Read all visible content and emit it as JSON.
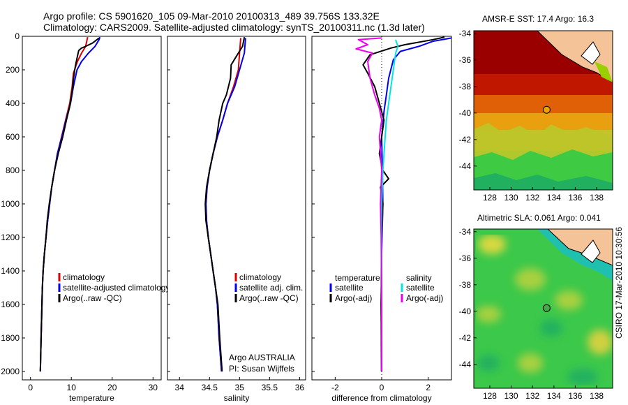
{
  "title_line1": "Argo profile: CS 5901620_105 09-Mar-2010 20100313_489 39.756S 133.32E",
  "title_line2": "Climatology: CARS2009. Satellite-adjusted climatology: synTS_20100311.nc (1.3d later)",
  "credit": "CSIRO 17-Mar-2010 10:30:56",
  "colors": {
    "climatology": "#dd0000",
    "satellite": "#0000ee",
    "argo": "#000000",
    "satellite_salinity": "#00e5e5",
    "argo_salinity_diff": "#ee00ee"
  },
  "chart_data": [
    {
      "type": "line",
      "id": "temperature",
      "xlabel": "temperature",
      "ylabel": "",
      "xlim": [
        -2,
        32
      ],
      "ylim": [
        2050,
        0
      ],
      "xticks": [
        "0",
        "10",
        "20",
        "30"
      ],
      "xtick_values": [
        0,
        10,
        20,
        30
      ],
      "yticks": [
        "0",
        "200",
        "400",
        "600",
        "800",
        "1000",
        "1200",
        "1400",
        "1600",
        "1800",
        "2000"
      ],
      "ytick_values": [
        0,
        200,
        400,
        600,
        800,
        1000,
        1200,
        1400,
        1600,
        1800,
        2000
      ],
      "legend": [
        "climatology",
        "satellite-adjusted climatology",
        "Argo(..raw -QC)"
      ],
      "series": [
        {
          "name": "climatology",
          "color": "#dd0000",
          "points": [
            [
              14,
              5
            ],
            [
              13.5,
              60
            ],
            [
              12.5,
              100
            ],
            [
              11.5,
              150
            ],
            [
              10.5,
              220
            ],
            [
              10.2,
              300
            ],
            [
              9.6,
              400
            ],
            [
              8.6,
              500
            ],
            [
              7.6,
              600
            ],
            [
              6.6,
              700
            ],
            [
              5.9,
              800
            ],
            [
              5.2,
              900
            ],
            [
              4.7,
              1000
            ],
            [
              4.2,
              1100
            ],
            [
              3.8,
              1200
            ],
            [
              3.4,
              1300
            ],
            [
              3.1,
              1400
            ],
            [
              2.9,
              1500
            ],
            [
              2.8,
              1600
            ],
            [
              2.6,
              1800
            ],
            [
              2.4,
              2000
            ]
          ]
        },
        {
          "name": "satellite-adjusted climatology",
          "color": "#0000ee",
          "points": [
            [
              17,
              5
            ],
            [
              16.8,
              20
            ],
            [
              15.8,
              60
            ],
            [
              14.2,
              100
            ],
            [
              12.5,
              150
            ],
            [
              11.4,
              200
            ],
            [
              10.5,
              300
            ],
            [
              9.8,
              400
            ],
            [
              8.7,
              500
            ],
            [
              7.7,
              600
            ],
            [
              6.6,
              700
            ],
            [
              5.9,
              800
            ],
            [
              5.2,
              900
            ],
            [
              4.7,
              1000
            ],
            [
              4.2,
              1100
            ],
            [
              3.8,
              1200
            ],
            [
              3.4,
              1300
            ],
            [
              3.1,
              1400
            ],
            [
              2.9,
              1500
            ],
            [
              2.8,
              1600
            ],
            [
              2.6,
              1800
            ],
            [
              2.4,
              2000
            ]
          ]
        },
        {
          "name": "Argo(..raw -QC)",
          "color": "#000000",
          "points": [
            [
              16.8,
              10
            ],
            [
              15.2,
              40
            ],
            [
              13.5,
              60
            ],
            [
              12.5,
              70
            ],
            [
              11.8,
              85
            ],
            [
              11.4,
              130
            ],
            [
              11,
              175
            ],
            [
              10.6,
              240
            ],
            [
              10.2,
              330
            ],
            [
              9.6,
              420
            ],
            [
              8.8,
              500
            ],
            [
              7.9,
              600
            ],
            [
              6.8,
              700
            ],
            [
              5.9,
              800
            ],
            [
              5.2,
              900
            ],
            [
              4.6,
              1000
            ],
            [
              4.1,
              1100
            ],
            [
              3.8,
              1200
            ],
            [
              3.4,
              1300
            ],
            [
              3.1,
              1400
            ],
            [
              2.9,
              1500
            ],
            [
              2.8,
              1600
            ],
            [
              2.6,
              1800
            ],
            [
              2.4,
              2000
            ]
          ]
        }
      ]
    },
    {
      "type": "line",
      "id": "salinity",
      "xlabel": "salinity",
      "xlim": [
        33.8,
        36.1
      ],
      "ylim": [
        2050,
        0
      ],
      "xticks": [
        "34",
        "34.5",
        "35",
        "35.5",
        "36"
      ],
      "xtick_values": [
        34,
        34.5,
        35,
        35.5,
        36
      ],
      "legend": [
        "climatology",
        "satellite adj. clim.",
        "Argo(..raw -QC)"
      ],
      "annotations": [
        "Argo AUSTRALIA",
        "PI: Susan Wijffels"
      ],
      "series": [
        {
          "name": "climatology",
          "color": "#dd0000",
          "points": [
            [
              35.02,
              10
            ],
            [
              35.0,
              100
            ],
            [
              34.98,
              200
            ],
            [
              34.9,
              300
            ],
            [
              34.8,
              400
            ],
            [
              34.72,
              500
            ],
            [
              34.63,
              600
            ],
            [
              34.56,
              700
            ],
            [
              34.5,
              800
            ],
            [
              34.46,
              900
            ],
            [
              34.44,
              1000
            ],
            [
              34.45,
              1100
            ],
            [
              34.48,
              1200
            ],
            [
              34.52,
              1300
            ],
            [
              34.56,
              1400
            ],
            [
              34.6,
              1500
            ],
            [
              34.63,
              1600
            ],
            [
              34.66,
              1800
            ],
            [
              34.7,
              2000
            ]
          ]
        },
        {
          "name": "satellite adj. clim.",
          "color": "#0000ee",
          "points": [
            [
              35.1,
              10
            ],
            [
              35.08,
              100
            ],
            [
              35.0,
              200
            ],
            [
              34.92,
              300
            ],
            [
              34.8,
              400
            ],
            [
              34.72,
              500
            ],
            [
              34.63,
              600
            ],
            [
              34.56,
              700
            ],
            [
              34.5,
              800
            ],
            [
              34.46,
              900
            ],
            [
              34.44,
              1000
            ],
            [
              34.45,
              1100
            ],
            [
              34.48,
              1200
            ],
            [
              34.52,
              1300
            ],
            [
              34.56,
              1400
            ],
            [
              34.6,
              1500
            ],
            [
              34.63,
              1600
            ],
            [
              34.66,
              1800
            ],
            [
              34.7,
              2000
            ]
          ]
        },
        {
          "name": "Argo(..raw -QC)",
          "color": "#000000",
          "points": [
            [
              35.08,
              5
            ],
            [
              35.05,
              60
            ],
            [
              34.98,
              100
            ],
            [
              34.86,
              170
            ],
            [
              34.85,
              250
            ],
            [
              34.78,
              350
            ],
            [
              34.72,
              400
            ],
            [
              34.66,
              500
            ],
            [
              34.62,
              600
            ],
            [
              34.56,
              700
            ],
            [
              34.5,
              800
            ],
            [
              34.45,
              900
            ],
            [
              34.43,
              1000
            ],
            [
              34.44,
              1100
            ],
            [
              34.48,
              1200
            ],
            [
              34.52,
              1300
            ],
            [
              34.56,
              1400
            ],
            [
              34.6,
              1500
            ],
            [
              34.64,
              1600
            ],
            [
              34.67,
              1800
            ],
            [
              34.71,
              2000
            ]
          ]
        }
      ]
    },
    {
      "type": "line",
      "id": "difference",
      "xlabel": "difference from climatology",
      "xlim": [
        -3,
        3
      ],
      "ylim": [
        2050,
        0
      ],
      "xticks": [
        "-2",
        "0",
        "2"
      ],
      "xtick_values": [
        -2,
        0,
        2
      ],
      "legend_left_title": "temperature",
      "legend_right_title": "salinity",
      "legend_left": [
        "satellite",
        "Argo(-adj)"
      ],
      "legend_right": [
        "satellite",
        "Argo(-adj)"
      ],
      "series": [
        {
          "name": "temperature satellite",
          "color": "#0000ee",
          "points": [
            [
              3,
              10
            ],
            [
              2.2,
              30
            ],
            [
              1.6,
              60
            ],
            [
              0.8,
              90
            ],
            [
              0.5,
              140
            ],
            [
              0.3,
              250
            ],
            [
              0.2,
              350
            ],
            [
              0.1,
              450
            ],
            [
              0.0,
              600
            ],
            [
              0.03,
              800
            ],
            [
              0.05,
              1000
            ],
            [
              0.0,
              1300
            ],
            [
              -0.02,
              1600
            ],
            [
              -0.01,
              2000
            ]
          ]
        },
        {
          "name": "temperature Argo(-adj)",
          "color": "#000000",
          "points": [
            [
              2.7,
              5
            ],
            [
              2.2,
              20
            ],
            [
              1.0,
              50
            ],
            [
              0.4,
              70
            ],
            [
              -0.5,
              110
            ],
            [
              -0.8,
              170
            ],
            [
              -0.6,
              220
            ],
            [
              -0.3,
              300
            ],
            [
              -0.1,
              400
            ],
            [
              0.1,
              500
            ],
            [
              0.0,
              600
            ],
            [
              -0.1,
              700
            ],
            [
              0.05,
              800
            ],
            [
              0.3,
              850
            ],
            [
              -0.05,
              900
            ],
            [
              0.05,
              1000
            ],
            [
              0.0,
              1200
            ],
            [
              -0.02,
              1600
            ],
            [
              0.0,
              2000
            ]
          ]
        },
        {
          "name": "salinity satellite",
          "color": "#00e5e5",
          "points": [
            [
              0.6,
              20
            ],
            [
              0.7,
              60
            ],
            [
              0.6,
              100
            ],
            [
              0.5,
              200
            ],
            [
              0.4,
              300
            ],
            [
              0.3,
              400
            ],
            [
              0.2,
              500
            ],
            [
              0.15,
              600
            ],
            [
              0.05,
              800
            ],
            [
              0.0,
              1000
            ],
            [
              0.0,
              1500
            ],
            [
              0.0,
              2000
            ]
          ]
        },
        {
          "name": "salinity Argo(-adj)",
          "color": "#ee00ee",
          "points": [
            [
              0.0,
              10
            ],
            [
              -1.0,
              20
            ],
            [
              -0.6,
              50
            ],
            [
              -1.1,
              75
            ],
            [
              -0.4,
              100
            ],
            [
              -0.6,
              150
            ],
            [
              -0.5,
              250
            ],
            [
              -0.3,
              350
            ],
            [
              -0.1,
              430
            ],
            [
              0.0,
              500
            ],
            [
              -0.1,
              600
            ],
            [
              0.0,
              800
            ],
            [
              -0.05,
              1000
            ],
            [
              -0.02,
              1200
            ],
            [
              0.0,
              1600
            ],
            [
              0.0,
              2000
            ]
          ]
        }
      ]
    },
    {
      "type": "heatmap",
      "id": "sst_map",
      "title": "AMSR-E SST: 17.4 Argo: 16.3",
      "xlim": [
        126.5,
        139.5
      ],
      "ylim": [
        -45.8,
        -33.8
      ],
      "xticks": [
        "128",
        "130",
        "132",
        "134",
        "136",
        "138"
      ],
      "yticks": [
        "-34",
        "-36",
        "-38",
        "-40",
        "-42",
        "-44"
      ],
      "float_position": {
        "lon": 133.32,
        "lat": -39.756
      }
    },
    {
      "type": "heatmap",
      "id": "sla_map",
      "title": "Altimetric SLA: 0.061 Argo: 0.041",
      "xlim": [
        126.5,
        139.5
      ],
      "ylim": [
        -45.8,
        -33.8
      ],
      "xticks": [
        "128",
        "130",
        "132",
        "134",
        "136",
        "138"
      ],
      "yticks": [
        "-34",
        "-36",
        "-38",
        "-40",
        "-42",
        "-44"
      ],
      "float_position": {
        "lon": 133.32,
        "lat": -39.756
      }
    }
  ]
}
